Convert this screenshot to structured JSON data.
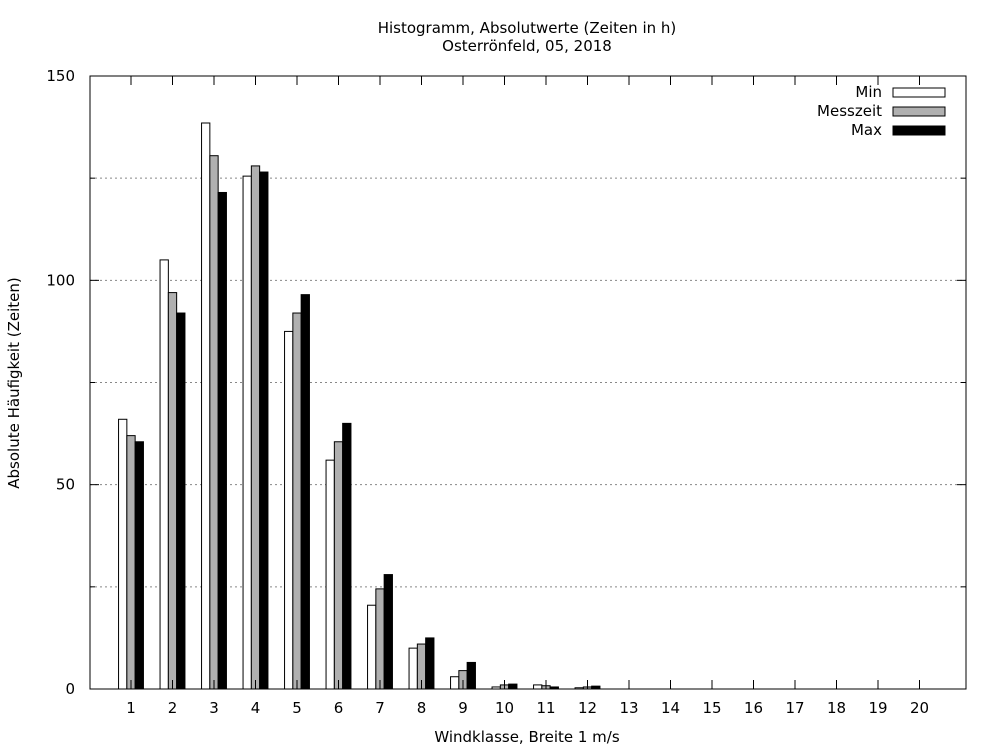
{
  "chart_data": {
    "type": "bar",
    "title": "Histogramm, Absolutwerte (Zeiten in h)",
    "subtitle": "Osterrönfeld, 05, 2018",
    "xlabel": "Windklasse, Breite 1 m/s",
    "ylabel": "Absolute Häufigkeit (Zeiten)",
    "ylim": [
      0,
      150
    ],
    "yticks": [
      0,
      50,
      100,
      150
    ],
    "minor_grid": [
      25,
      75,
      125
    ],
    "grid": true,
    "legend_position": "top-right",
    "categories": [
      "1",
      "2",
      "3",
      "4",
      "5",
      "6",
      "7",
      "8",
      "9",
      "10",
      "11",
      "12",
      "13",
      "14",
      "15",
      "16",
      "17",
      "18",
      "19",
      "20"
    ],
    "series": [
      {
        "name": "Min",
        "color": "#ffffff",
        "values": [
          66,
          105,
          138.5,
          125.5,
          87.5,
          56,
          20.5,
          10,
          3,
          0.5,
          1,
          0.3,
          0,
          0,
          0,
          0,
          0,
          0,
          0,
          0
        ]
      },
      {
        "name": "Messzeit",
        "color": "#b0b0b0",
        "values": [
          62,
          97,
          130.5,
          128,
          92,
          60.5,
          24.5,
          11,
          4.5,
          1,
          0.8,
          0.5,
          0,
          0,
          0,
          0,
          0,
          0,
          0,
          0
        ]
      },
      {
        "name": "Max",
        "color": "#000000",
        "values": [
          60.5,
          92,
          121.5,
          126.5,
          96.5,
          65,
          28,
          12.5,
          6.5,
          1.2,
          0.5,
          0.7,
          0,
          0,
          0,
          0,
          0,
          0,
          0,
          0
        ]
      }
    ]
  }
}
